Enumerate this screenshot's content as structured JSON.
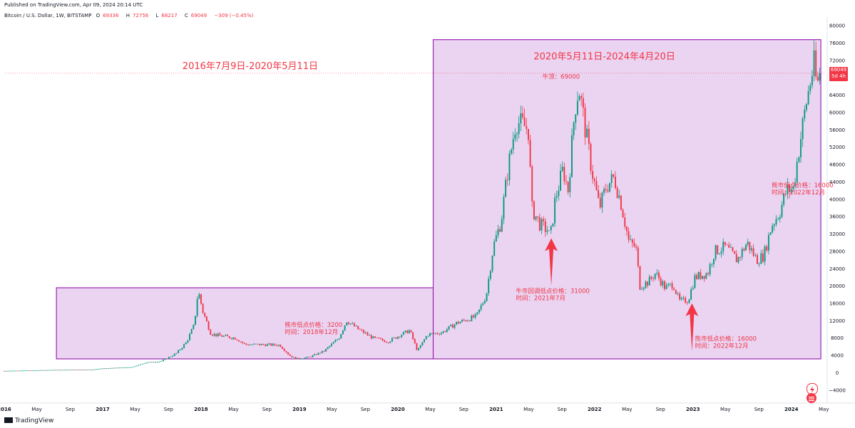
{
  "header": {
    "published": "Published on TradingView.com, Apr 09, 2024 20:14 UTC",
    "symbol": "Bitcoin / U.S. Dollar, 1W, BITSTAMP",
    "ohlc": {
      "open_label": "O",
      "open": "69336",
      "high_label": "H",
      "high": "72756",
      "low_label": "L",
      "low": "68217",
      "close_label": "C",
      "close": "69049",
      "change": "−309 (−0.45%)"
    }
  },
  "price_tag": {
    "price": "69049",
    "countdown": "5d 4h"
  },
  "footer": {
    "brand": "TradingView"
  },
  "colors": {
    "up": "#089981",
    "down": "#f23645",
    "annotation": "#f23645",
    "box_fill": "#e6ccf0",
    "box_stroke": "#9c27b0",
    "axis_text": "#131722"
  },
  "chart_data": {
    "type": "candlestick",
    "title": "",
    "xlabel": "",
    "ylabel": "",
    "ylim": [
      -6000,
      82000
    ],
    "y_ticks": [
      80000,
      76000,
      72000,
      68000,
      64000,
      60000,
      56000,
      52000,
      48000,
      44000,
      40000,
      36000,
      32000,
      28000,
      24000,
      20000,
      16000,
      12000,
      8000,
      4000,
      0,
      -4000
    ],
    "x_ticks": [
      "2016",
      "May",
      "Sep",
      "2017",
      "May",
      "Sep",
      "2018",
      "May",
      "Sep",
      "2019",
      "May",
      "Sep",
      "2020",
      "May",
      "Sep",
      "2021",
      "May",
      "Sep",
      "2022",
      "May",
      "Sep",
      "2023",
      "May",
      "Sep",
      "2024",
      "May"
    ],
    "x_tick_bold": [
      true,
      false,
      false,
      true,
      false,
      false,
      true,
      false,
      false,
      true,
      false,
      false,
      true,
      false,
      false,
      true,
      false,
      false,
      true,
      false,
      false,
      true,
      false,
      false,
      true,
      false
    ],
    "x_tick_t": [
      2016.0,
      2016.33,
      2016.67,
      2017.0,
      2017.33,
      2017.67,
      2018.0,
      2018.33,
      2018.67,
      2019.0,
      2019.33,
      2019.67,
      2020.0,
      2020.33,
      2020.67,
      2021.0,
      2021.33,
      2021.67,
      2022.0,
      2022.33,
      2022.67,
      2023.0,
      2023.33,
      2023.67,
      2024.0,
      2024.33
    ],
    "x_range": [
      2016.0,
      2024.35
    ],
    "price_path": [
      [
        2016.0,
        430
      ],
      [
        2016.5,
        650
      ],
      [
        2016.9,
        750
      ],
      [
        2017.0,
        1000
      ],
      [
        2017.3,
        1300
      ],
      [
        2017.45,
        2400
      ],
      [
        2017.6,
        2700
      ],
      [
        2017.75,
        4500
      ],
      [
        2017.85,
        7000
      ],
      [
        2017.93,
        11000
      ],
      [
        2017.97,
        19000
      ],
      [
        2018.02,
        14000
      ],
      [
        2018.1,
        9000
      ],
      [
        2018.2,
        8500
      ],
      [
        2018.35,
        8000
      ],
      [
        2018.45,
        6500
      ],
      [
        2018.6,
        6500
      ],
      [
        2018.8,
        6400
      ],
      [
        2018.9,
        4000
      ],
      [
        2018.97,
        3200
      ],
      [
        2019.1,
        3600
      ],
      [
        2019.25,
        5000
      ],
      [
        2019.4,
        8000
      ],
      [
        2019.48,
        12000
      ],
      [
        2019.6,
        10000
      ],
      [
        2019.75,
        8000
      ],
      [
        2019.9,
        7200
      ],
      [
        2020.05,
        9000
      ],
      [
        2020.12,
        9800
      ],
      [
        2020.2,
        5000
      ],
      [
        2020.3,
        8800
      ],
      [
        2020.45,
        9300
      ],
      [
        2020.6,
        11500
      ],
      [
        2020.8,
        13000
      ],
      [
        2020.9,
        18000
      ],
      [
        2020.97,
        29000
      ],
      [
        2021.05,
        35000
      ],
      [
        2021.12,
        47000
      ],
      [
        2021.2,
        58000
      ],
      [
        2021.28,
        57000
      ],
      [
        2021.33,
        56000
      ],
      [
        2021.36,
        38000
      ],
      [
        2021.45,
        34000
      ],
      [
        2021.52,
        33000
      ],
      [
        2021.55,
        31000
      ],
      [
        2021.6,
        40000
      ],
      [
        2021.68,
        47000
      ],
      [
        2021.73,
        42000
      ],
      [
        2021.8,
        61000
      ],
      [
        2021.84,
        66000
      ],
      [
        2021.9,
        57000
      ],
      [
        2021.97,
        47000
      ],
      [
        2022.05,
        38000
      ],
      [
        2022.12,
        43000
      ],
      [
        2022.2,
        45000
      ],
      [
        2022.27,
        39000
      ],
      [
        2022.35,
        30000
      ],
      [
        2022.42,
        29000
      ],
      [
        2022.46,
        20000
      ],
      [
        2022.55,
        21000
      ],
      [
        2022.62,
        23000
      ],
      [
        2022.72,
        19500
      ],
      [
        2022.8,
        20500
      ],
      [
        2022.86,
        16500
      ],
      [
        2022.95,
        16700
      ],
      [
        2023.02,
        22000
      ],
      [
        2023.15,
        23000
      ],
      [
        2023.22,
        28000
      ],
      [
        2023.33,
        29000
      ],
      [
        2023.45,
        26000
      ],
      [
        2023.55,
        30000
      ],
      [
        2023.65,
        26000
      ],
      [
        2023.72,
        27000
      ],
      [
        2023.8,
        34000
      ],
      [
        2023.88,
        37000
      ],
      [
        2023.95,
        42000
      ],
      [
        2024.02,
        42500
      ],
      [
        2024.08,
        52000
      ],
      [
        2024.15,
        62000
      ],
      [
        2024.2,
        68000
      ],
      [
        2024.23,
        71000
      ],
      [
        2024.26,
        66000
      ],
      [
        2024.3,
        69049
      ]
    ],
    "last_price": 69049,
    "boxes": [
      {
        "t0": 2016.53,
        "t1": 2020.36,
        "p0": 3200,
        "p1": 19600,
        "label": "2016年7月9日-2020年5月11日",
        "label_t": 2018.5,
        "label_p": 70000
      },
      {
        "t0": 2020.36,
        "t1": 2024.3,
        "p0": 3200,
        "p1": 76800,
        "label": "2020年5月11日-2024年4月20日",
        "label_t": 2022.1,
        "label_p": 72200
      }
    ],
    "annotations": [
      {
        "t": 2021.47,
        "p": 67800,
        "lines": [
          "牛顶：69000"
        ]
      },
      {
        "t": 2018.85,
        "p": 10600,
        "lines": [
          "熊市低点价格：3200",
          "时间：2018年12月"
        ]
      },
      {
        "t": 2021.2,
        "p": 18400,
        "lines": [
          "牛市回调低点价格：31000",
          "时间：2021年7月"
        ]
      },
      {
        "t": 2023.02,
        "p": 7400,
        "lines": [
          "熊市低点价格：16000",
          "时间：2022年12月"
        ]
      },
      {
        "t": 2023.8,
        "p": 42800,
        "lines": [
          "熊市低点价格：16000",
          "时间：2022年12月"
        ]
      }
    ],
    "arrows": [
      {
        "t": 2021.56,
        "p_tail": 20000,
        "p_head": 31000
      },
      {
        "t": 2022.99,
        "p_tail": 5000,
        "p_head": 16000
      }
    ],
    "grid": false,
    "legend": "none"
  }
}
